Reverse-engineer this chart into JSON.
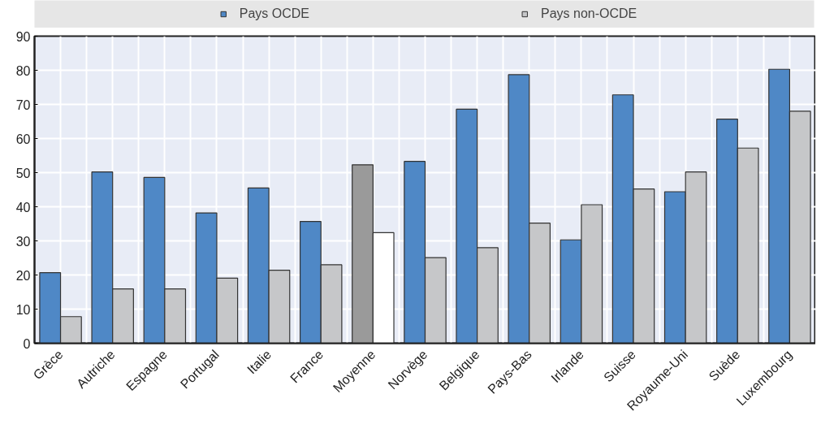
{
  "chart_data": {
    "type": "bar",
    "categories": [
      "Grèce",
      "Autriche",
      "Espagne",
      "Portugal",
      "Italie",
      "France",
      "Moyenne",
      "Norvège",
      "Belgique",
      "Pays-Bas",
      "Irlande",
      "Suisse",
      "Royaume-Uni",
      "Suède",
      "Luxembourg"
    ],
    "series": [
      {
        "name": "Pays OCDE",
        "color": "#4f88c6",
        "colors": [
          "#4f88c6",
          "#4f88c6",
          "#4f88c6",
          "#4f88c6",
          "#4f88c6",
          "#4f88c6",
          "#9a9a9a",
          "#4f88c6",
          "#4f88c6",
          "#4f88c6",
          "#4f88c6",
          "#4f88c6",
          "#4f88c6",
          "#4f88c6",
          "#4f88c6"
        ],
        "values": [
          20.7,
          50.2,
          48.6,
          38.2,
          45.5,
          35.7,
          52.3,
          53.3,
          68.6,
          78.7,
          30.3,
          72.8,
          44.4,
          65.7,
          80.3
        ]
      },
      {
        "name": "Pays non-OCDE",
        "color": "#c6c7c9",
        "colors": [
          "#c6c7c9",
          "#c6c7c9",
          "#c6c7c9",
          "#c6c7c9",
          "#c6c7c9",
          "#c6c7c9",
          "#ffffff",
          "#c6c7c9",
          "#c6c7c9",
          "#c6c7c9",
          "#c6c7c9",
          "#c6c7c9",
          "#c6c7c9",
          "#c6c7c9",
          "#c6c7c9"
        ],
        "values": [
          7.8,
          15.9,
          15.9,
          19.1,
          21.4,
          23.0,
          32.4,
          25.1,
          28.0,
          35.2,
          40.6,
          45.2,
          50.2,
          57.2,
          68.0
        ]
      }
    ],
    "ylim": [
      0,
      90
    ],
    "yticks": [
      0,
      10,
      20,
      30,
      40,
      50,
      60,
      70,
      80,
      90
    ],
    "grid": true,
    "legend": "top"
  }
}
